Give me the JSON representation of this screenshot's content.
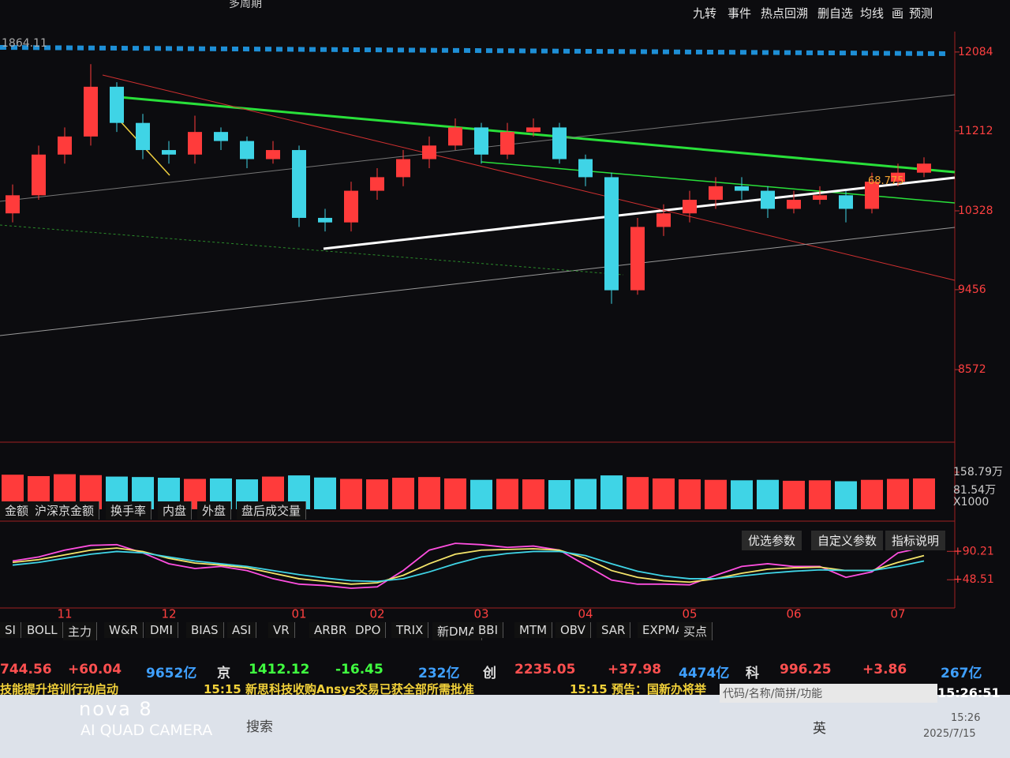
{
  "top_bar": {
    "period": "多周期",
    "top_left_value": "1864.11",
    "tools": [
      "九转",
      "事件",
      "热点回溯",
      "删自选",
      "均线",
      "画",
      "预测"
    ],
    "annotation": "68.775"
  },
  "chart_data": [
    {
      "type": "candlestick",
      "open": [
        10300,
        10500,
        10950,
        11150,
        11700,
        11300,
        11000,
        10950,
        11200,
        11100,
        10900,
        11000,
        10250,
        10200,
        10550,
        10700,
        10900,
        11050,
        11250,
        10950,
        11200,
        11250,
        10900,
        10700,
        9450,
        10150,
        10300,
        10450,
        10600,
        10550,
        10350,
        10450,
        10500,
        10350,
        10650,
        10750
      ],
      "high": [
        10620,
        11050,
        11250,
        11950,
        11750,
        11400,
        11100,
        11380,
        11250,
        11150,
        11100,
        11050,
        10350,
        10650,
        10800,
        11000,
        11150,
        11350,
        11300,
        11300,
        11350,
        11300,
        10950,
        10750,
        10250,
        10400,
        10550,
        10700,
        10700,
        10600,
        10550,
        10600,
        10550,
        10750,
        10850,
        10920
      ],
      "low": [
        10200,
        10450,
        10850,
        11050,
        11200,
        10900,
        10850,
        10850,
        11000,
        10800,
        10850,
        10150,
        10100,
        10100,
        10450,
        10600,
        10800,
        11000,
        10850,
        10900,
        11150,
        10850,
        10600,
        9300,
        9400,
        10050,
        10200,
        10350,
        10450,
        10250,
        10300,
        10400,
        10200,
        10300,
        10600,
        10700
      ],
      "close": [
        10500,
        10950,
        11150,
        11700,
        11300,
        11000,
        10950,
        11200,
        11100,
        10900,
        11000,
        10250,
        10200,
        10550,
        10700,
        10900,
        11050,
        11250,
        10950,
        11200,
        11250,
        10900,
        10700,
        9450,
        10150,
        10300,
        10450,
        10600,
        10550,
        10350,
        10450,
        10500,
        10350,
        10650,
        10750,
        10850
      ],
      "up_color": "#ff3b3b",
      "down_color": "#3fd4e6",
      "ylim": [
        7770,
        12310
      ],
      "yticks": [
        8572,
        9456,
        10328,
        11212,
        12084
      ],
      "grid": false
    },
    {
      "type": "bar",
      "values": [
        148,
        142,
        150,
        146,
        140,
        138,
        135,
        130,
        132,
        128,
        140,
        145,
        136,
        130,
        128,
        135,
        138,
        132,
        126,
        130,
        128,
        125,
        130,
        145,
        138,
        132,
        128,
        126,
        124,
        126,
        122,
        124,
        120,
        126,
        130,
        132
      ],
      "ylim": [
        0,
        158.79
      ],
      "yticks": [
        {
          "value": 158.79,
          "label": "158.79万"
        },
        {
          "value": 81.54,
          "label": "81.54万"
        }
      ],
      "unit_note": "X1000",
      "tabs": [
        "金额",
        "沪深京金额",
        "换手率",
        "内盘",
        "外盘",
        "盘后成交量"
      ]
    },
    {
      "type": "line",
      "categories": [
        null,
        null,
        "11",
        null,
        null,
        null,
        "12",
        null,
        null,
        null,
        null,
        "01",
        null,
        null,
        "02",
        null,
        null,
        null,
        "03",
        null,
        null,
        null,
        "04",
        null,
        null,
        null,
        "05",
        null,
        null,
        null,
        "06",
        null,
        null,
        null,
        "07",
        null
      ],
      "series": [
        {
          "color": "#ff4fe0",
          "values": [
            76,
            82,
            92,
            99,
            100,
            88,
            72,
            65,
            68,
            62,
            50,
            42,
            40,
            36,
            38,
            62,
            92,
            102,
            100,
            96,
            98,
            92,
            70,
            48,
            42,
            42,
            41,
            55,
            68,
            72,
            68,
            68,
            52,
            60,
            88,
            96
          ]
        },
        {
          "color": "#f4e46a",
          "values": [
            74,
            78,
            85,
            92,
            95,
            90,
            80,
            73,
            70,
            66,
            58,
            50,
            46,
            42,
            44,
            55,
            72,
            86,
            92,
            93,
            94,
            92,
            80,
            62,
            52,
            47,
            45,
            50,
            58,
            64,
            66,
            67,
            62,
            62,
            74,
            84
          ]
        },
        {
          "color": "#3fd4e6",
          "values": [
            70,
            74,
            80,
            86,
            90,
            88,
            82,
            76,
            72,
            68,
            62,
            56,
            51,
            47,
            46,
            50,
            60,
            72,
            82,
            87,
            90,
            90,
            84,
            72,
            61,
            54,
            50,
            50,
            54,
            58,
            61,
            63,
            62,
            62,
            68,
            76
          ]
        }
      ],
      "ylim": [
        7,
        123
      ],
      "yticks": [
        {
          "value": 90.21,
          "label": "+90.21"
        },
        {
          "value": 48.51,
          "label": "+48.51"
        }
      ],
      "buttons": [
        "优选参数",
        "自定义参数",
        "指标说明"
      ],
      "tabs": [
        "SI",
        "BOLL",
        "主力",
        "W&R",
        "DMI",
        "BIAS",
        "ASI",
        "VR",
        "ARBR",
        "DPO",
        "TRIX",
        "新DMA",
        "BBI",
        "MTM",
        "OBV",
        "SAR",
        "EXPMA",
        "买点"
      ]
    }
  ],
  "ticker": [
    "744.56",
    "+60.04",
    "9652亿",
    "京",
    "1412.12",
    "-16.45",
    "232亿",
    "创",
    "2235.05",
    "+37.98",
    "4474亿",
    "科",
    "996.25",
    "+3.86",
    "267亿"
  ],
  "news": [
    "技能提升培训行动启动",
    "15:15 新思科技收购Ansys交易已获全部所需批准",
    "15:15 预告：国新办将举"
  ],
  "search_placeholder": "代码/名称/简拼/功能",
  "clock": "15:26:51",
  "taskbar": {
    "search": "搜索",
    "ime": "英",
    "time": "15:26",
    "date": "2025/7/15"
  },
  "watermark": [
    "nova 8",
    "AI QUAD CAMERA"
  ]
}
